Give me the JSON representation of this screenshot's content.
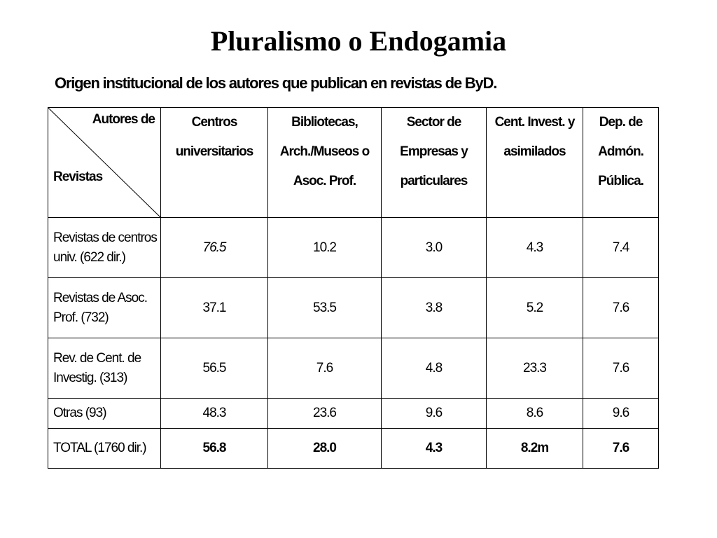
{
  "title": "Pluralismo o Endogamia",
  "subtitle": "Origen institucional de los autores que publican en revistas de ByD.",
  "chart_data": {
    "type": "table",
    "corner_top": "Autores de",
    "corner_bottom": "Revistas",
    "columns": [
      "Centros universitarios",
      "Bibliotecas, Arch./Museos o Asoc. Prof.",
      "Sector de Empresas y particulares",
      "Cent. Invest. y asimilados",
      "Dep. de Admón. Pública."
    ],
    "rows": [
      {
        "label": "Revistas de centros univ. (622 dir.)",
        "values": [
          "76.5",
          "10.2",
          "3.0",
          "4.3",
          "7.4"
        ]
      },
      {
        "label": "Revistas de Asoc. Prof. (732)",
        "values": [
          "37.1",
          "53.5",
          "3.8",
          "5.2",
          "7.6"
        ]
      },
      {
        "label": "Rev. de Cent. de Investig. (313)",
        "values": [
          "56.5",
          "7.6",
          "4.8",
          "23.3",
          "7.6"
        ]
      },
      {
        "label": "Otras (93)",
        "values": [
          "48.3",
          "23.6",
          "9.6",
          "8.6",
          "9.6"
        ]
      },
      {
        "label": "TOTAL  (1760 dir.)",
        "values": [
          "56.8",
          "28.0",
          "4.3",
          "8.2m",
          "7.6"
        ]
      }
    ]
  }
}
